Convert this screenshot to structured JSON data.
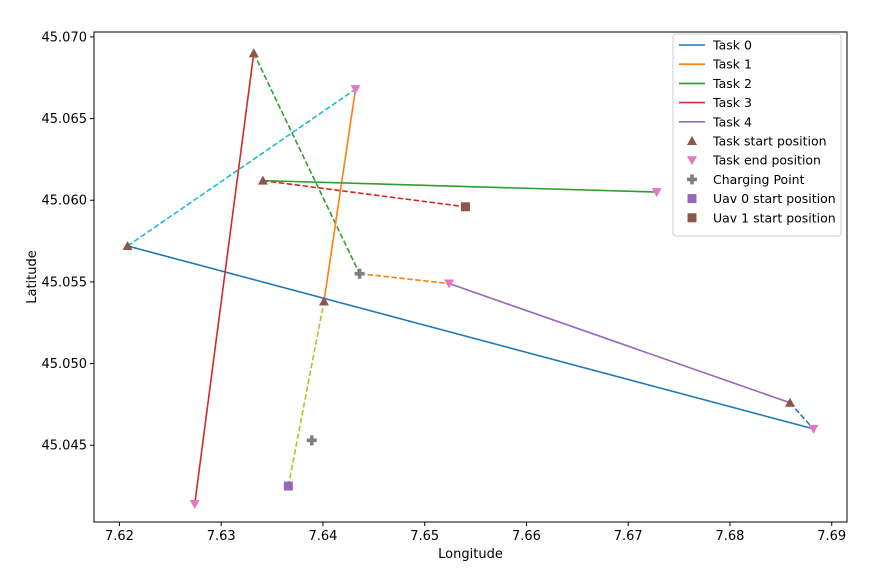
{
  "chart_data": {
    "type": "line",
    "xlabel": "Longitude",
    "ylabel": "Latitude",
    "xlim": [
      7.6175,
      7.6915
    ],
    "ylim": [
      45.0403,
      45.0703
    ],
    "x_ticks": [
      7.62,
      7.63,
      7.64,
      7.65,
      7.66,
      7.67,
      7.68,
      7.69
    ],
    "x_tick_labels": [
      "7.62",
      "7.63",
      "7.64",
      "7.65",
      "7.66",
      "7.67",
      "7.68",
      "7.69"
    ],
    "y_ticks": [
      45.045,
      45.05,
      45.055,
      45.06,
      45.065,
      45.07
    ],
    "y_tick_labels": [
      "45.045",
      "45.050",
      "45.055",
      "45.060",
      "45.065",
      "45.070"
    ],
    "grid": false,
    "legend_position": "top-right",
    "series": [
      {
        "name": "Task 0",
        "color": "#1f77b4",
        "style": "solid",
        "x": [
          7.6208,
          7.6882
        ],
        "y": [
          45.0572,
          45.046
        ]
      },
      {
        "name": "Task 1",
        "color": "#ff7f0e",
        "style": "solid",
        "x": [
          7.6401,
          7.6432
        ],
        "y": [
          45.0538,
          45.0668
        ]
      },
      {
        "name": "Task 2",
        "color": "#2ca02c",
        "style": "solid",
        "x": [
          7.6341,
          7.6728
        ],
        "y": [
          45.0612,
          45.0605
        ]
      },
      {
        "name": "Task 3",
        "color": "#d62728",
        "style": "solid",
        "x": [
          7.6332,
          7.6274
        ],
        "y": [
          45.069,
          45.0414
        ]
      },
      {
        "name": "Task 4",
        "color": "#9467bd",
        "style": "solid",
        "x": [
          7.6524,
          7.6859
        ],
        "y": [
          45.0549,
          45.0476
        ]
      }
    ],
    "transitions": [
      {
        "color": "#1f77b4",
        "x": [
          7.6859,
          7.6882
        ],
        "y": [
          45.0476,
          45.046
        ]
      },
      {
        "color": "#ff7f0e",
        "x": [
          7.6436,
          7.6524
        ],
        "y": [
          45.0555,
          45.0549
        ]
      },
      {
        "color": "#2ca02c",
        "x": [
          7.6332,
          7.6436
        ],
        "y": [
          45.069,
          45.0555
        ]
      },
      {
        "color": "#d62728",
        "x": [
          7.6341,
          7.654
        ],
        "y": [
          45.0612,
          45.0596
        ]
      },
      {
        "color": "#17becf",
        "x": [
          7.6208,
          7.6432
        ],
        "y": [
          45.0572,
          45.0668
        ]
      },
      {
        "color": "#bcbd22",
        "x": [
          7.6366,
          7.6401
        ],
        "y": [
          45.0425,
          45.0538
        ]
      }
    ],
    "markers": [
      {
        "name": "Task start position",
        "shape": "triangle-up",
        "color": "#8c564b",
        "x": [
          7.6208,
          7.6401,
          7.6341,
          7.6332,
          7.6859
        ],
        "y": [
          45.0572,
          45.0538,
          45.0612,
          45.069,
          45.0476
        ]
      },
      {
        "name": "Task end position",
        "shape": "triangle-down",
        "color": "#e377c2",
        "x": [
          7.6882,
          7.6432,
          7.6728,
          7.6274,
          7.6524
        ],
        "y": [
          45.046,
          45.0668,
          45.0605,
          45.0414,
          45.0549
        ]
      },
      {
        "name": "Charging Point",
        "shape": "plus",
        "color": "#7f7f7f",
        "x": [
          7.6389,
          7.6436
        ],
        "y": [
          45.0453,
          45.0555
        ]
      },
      {
        "name": "Uav 0 start position",
        "shape": "square",
        "color": "#9467bd",
        "x": [
          7.6366
        ],
        "y": [
          45.0425
        ]
      },
      {
        "name": "Uav 1 start position",
        "shape": "square",
        "color": "#8c564b",
        "x": [
          7.654
        ],
        "y": [
          45.0596
        ]
      }
    ]
  }
}
